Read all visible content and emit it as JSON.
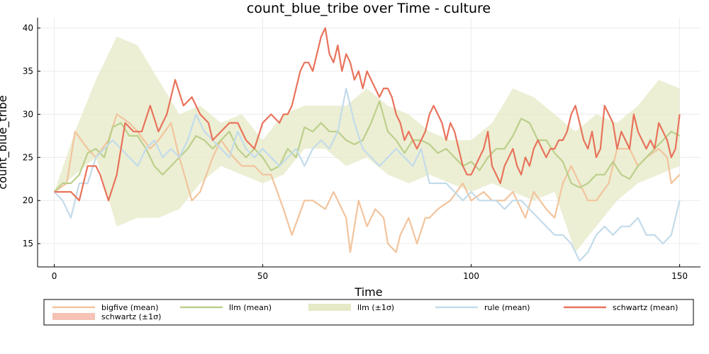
{
  "chart_data": {
    "type": "line",
    "title": "count_blue_tribe over Time - culture",
    "xlabel": "Time",
    "ylabel": "count_blue_tribe",
    "xlim": [
      -4,
      155
    ],
    "ylim": [
      12.3,
      41.2
    ],
    "xticks": [
      0,
      50,
      100,
      150
    ],
    "yticks": [
      15,
      20,
      25,
      30,
      35,
      40
    ],
    "grid": true,
    "legend_position": "bottom",
    "legend": [
      {
        "label": "bigfive (mean)",
        "kind": "line",
        "color": "#f2c49d"
      },
      {
        "label": "llm (mean)",
        "kind": "line",
        "color": "#bccf8b"
      },
      {
        "label": "llm (±1σ)",
        "kind": "band",
        "color": "#e6e9c6"
      },
      {
        "label": "rule (mean)",
        "kind": "line",
        "color": "#c3dbea"
      },
      {
        "label": "schwartz (mean)",
        "kind": "line",
        "color": "#e8735b"
      },
      {
        "label": "schwartz (±1σ)",
        "kind": "band",
        "color": "#f5c2b5"
      }
    ],
    "series": [
      {
        "name": "llm (±1σ)",
        "kind": "band",
        "color": "#e6e9c6",
        "x": [
          0,
          5,
          10,
          15,
          20,
          25,
          30,
          35,
          40,
          45,
          50,
          55,
          60,
          65,
          70,
          75,
          80,
          85,
          90,
          95,
          100,
          105,
          110,
          115,
          120,
          125,
          130,
          135,
          140,
          145,
          150
        ],
        "lower": [
          21,
          23,
          25,
          17,
          18,
          18,
          19,
          22,
          24,
          23,
          22,
          23,
          26,
          26,
          24,
          25,
          23,
          22,
          23,
          22,
          21,
          22,
          21,
          20,
          21,
          14,
          17,
          20,
          22,
          23,
          24
        ],
        "upper": [
          21,
          28,
          34,
          39,
          38,
          34,
          30,
          31,
          29,
          30,
          27,
          30,
          31,
          31,
          31,
          33,
          31,
          30,
          28,
          27,
          27,
          29,
          33,
          32,
          30,
          28,
          30,
          29,
          31,
          34,
          33
        ]
      },
      {
        "name": "bigfive (mean)",
        "kind": "line",
        "color": "#f2c49d",
        "x": [
          0,
          3,
          5,
          8,
          10,
          13,
          15,
          18,
          20,
          23,
          25,
          28,
          30,
          33,
          35,
          38,
          40,
          43,
          45,
          48,
          50,
          52,
          55,
          57,
          60,
          62,
          65,
          67,
          70,
          71,
          73,
          75,
          77,
          79,
          80,
          82,
          83,
          85,
          87,
          89,
          90,
          92,
          95,
          98,
          100,
          103,
          105,
          108,
          110,
          113,
          115,
          118,
          120,
          122,
          124,
          126,
          128,
          130,
          133,
          135,
          138,
          140,
          142,
          145,
          147,
          148,
          150
        ],
        "values": [
          21,
          22,
          28,
          26,
          25,
          27,
          30,
          29,
          28,
          26,
          27,
          29,
          25,
          20,
          21,
          25,
          27,
          25,
          24,
          24,
          23,
          23,
          19,
          16,
          20,
          20,
          19,
          21,
          18,
          14,
          20,
          17,
          19,
          18,
          15,
          14,
          16,
          18,
          15,
          18,
          18,
          19,
          20,
          22,
          20,
          21,
          20,
          20,
          21,
          18,
          21,
          19,
          18,
          22,
          24,
          22,
          20,
          20,
          22,
          26,
          26,
          24,
          25,
          26,
          25,
          22,
          23
        ]
      },
      {
        "name": "llm (mean)",
        "kind": "line",
        "color": "#bccf8b",
        "x": [
          0,
          2,
          4,
          6,
          8,
          10,
          12,
          14,
          16,
          18,
          20,
          22,
          24,
          26,
          28,
          30,
          32,
          34,
          36,
          38,
          40,
          42,
          44,
          46,
          48,
          50,
          52,
          54,
          56,
          58,
          60,
          62,
          64,
          66,
          68,
          70,
          72,
          74,
          76,
          78,
          80,
          82,
          84,
          86,
          88,
          90,
          92,
          94,
          96,
          98,
          100,
          102,
          104,
          106,
          108,
          110,
          112,
          114,
          116,
          118,
          120,
          122,
          124,
          126,
          128,
          130,
          132,
          134,
          136,
          138,
          140,
          142,
          144,
          146,
          148,
          150
        ],
        "values": [
          21,
          22,
          22,
          23,
          25.5,
          26,
          25,
          28.5,
          29,
          27.5,
          27.5,
          26,
          24,
          23,
          24,
          25,
          26,
          27.5,
          27,
          26,
          27,
          28,
          26,
          25,
          26,
          25,
          23.5,
          24,
          26,
          25,
          28.5,
          28,
          29,
          28,
          28,
          27,
          26.5,
          27,
          29,
          31.5,
          28,
          27,
          25.5,
          27,
          27,
          26.5,
          25.5,
          26,
          25,
          24,
          24.5,
          23.5,
          25,
          26,
          26,
          27.5,
          29.5,
          29,
          27,
          27,
          25.5,
          24.5,
          22,
          21.5,
          22,
          23,
          23,
          24.5,
          23,
          22.5,
          24,
          25,
          26,
          27,
          28,
          27.5
        ]
      },
      {
        "name": "rule (mean)",
        "kind": "line",
        "color": "#c3dbea",
        "x": [
          0,
          2,
          4,
          6,
          8,
          10,
          12,
          14,
          16,
          18,
          20,
          22,
          24,
          26,
          28,
          30,
          32,
          34,
          36,
          38,
          40,
          42,
          44,
          46,
          48,
          50,
          52,
          54,
          56,
          58,
          60,
          62,
          64,
          66,
          68,
          70,
          72,
          74,
          76,
          78,
          80,
          82,
          84,
          86,
          88,
          90,
          92,
          94,
          96,
          98,
          100,
          102,
          104,
          106,
          108,
          110,
          112,
          114,
          116,
          118,
          120,
          122,
          124,
          126,
          128,
          130,
          132,
          134,
          136,
          138,
          140,
          142,
          144,
          146,
          148,
          150
        ],
        "values": [
          21,
          20,
          18,
          22,
          22,
          25,
          26,
          27,
          26,
          25,
          24,
          26,
          27,
          25,
          26,
          25,
          27,
          30,
          28,
          27,
          26,
          25,
          28,
          26,
          25,
          26,
          25,
          24,
          25,
          26,
          24,
          26,
          27,
          26,
          28,
          33,
          29,
          26,
          25,
          24,
          25,
          26,
          25,
          24,
          26,
          22,
          22,
          22,
          21,
          20,
          21,
          20,
          20,
          20,
          19,
          20,
          20,
          19,
          18,
          17,
          16,
          16,
          15,
          13,
          14,
          16,
          17,
          16,
          17,
          17,
          18,
          16,
          16,
          15,
          16,
          20
        ]
      },
      {
        "name": "schwartz (mean)",
        "kind": "line",
        "color": "#e8735b",
        "x": [
          0,
          2,
          4,
          6,
          8,
          10,
          11,
          13,
          15,
          17,
          19,
          21,
          23,
          25,
          27,
          29,
          31,
          33,
          35,
          37,
          38,
          40,
          42,
          44,
          46,
          48,
          50,
          52,
          54,
          55,
          56,
          57,
          58,
          59,
          60,
          61,
          62,
          63,
          64,
          65,
          66,
          67,
          68,
          69,
          70,
          71,
          72,
          73,
          74,
          75,
          76,
          77,
          78,
          79,
          80,
          81,
          82,
          83,
          84,
          85,
          86,
          87,
          88,
          89,
          90,
          91,
          92,
          93,
          94,
          95,
          96,
          97,
          98,
          99,
          100,
          101,
          102,
          103,
          104,
          105,
          106,
          107,
          108,
          109,
          110,
          111,
          112,
          113,
          114,
          115,
          116,
          117,
          118,
          119,
          120,
          121,
          122,
          123,
          124,
          125,
          126,
          127,
          128,
          129,
          130,
          131,
          132,
          133,
          134,
          135,
          136,
          137,
          138,
          139,
          140,
          141,
          142,
          143,
          144,
          145,
          146,
          147,
          148,
          149,
          150
        ],
        "values": [
          21,
          21,
          21,
          20,
          24,
          24,
          23,
          20,
          23,
          29,
          28,
          28,
          31,
          28,
          30,
          34,
          31,
          32,
          30,
          29,
          27,
          28,
          29,
          29,
          27,
          26,
          29,
          30,
          29,
          30,
          30,
          31,
          33,
          35,
          36,
          36,
          35,
          37,
          39,
          40,
          37,
          36,
          38,
          35,
          37,
          36,
          34,
          35,
          33,
          35,
          34,
          33,
          32,
          33,
          33,
          32,
          30,
          29,
          27,
          28,
          27,
          26,
          27,
          28,
          30,
          31,
          30,
          29,
          27,
          29,
          28,
          26,
          24,
          23,
          23,
          24,
          25,
          26,
          28,
          24,
          23,
          22,
          24,
          25,
          26,
          24,
          23,
          25,
          24,
          26,
          27,
          26,
          25,
          26,
          26,
          27,
          27,
          28,
          30,
          31,
          29,
          27,
          26,
          28,
          25,
          26,
          31,
          30,
          29,
          26,
          28,
          27,
          26,
          30,
          28,
          27,
          26,
          27,
          26,
          29,
          28,
          27,
          25,
          26,
          30
        ]
      }
    ]
  }
}
